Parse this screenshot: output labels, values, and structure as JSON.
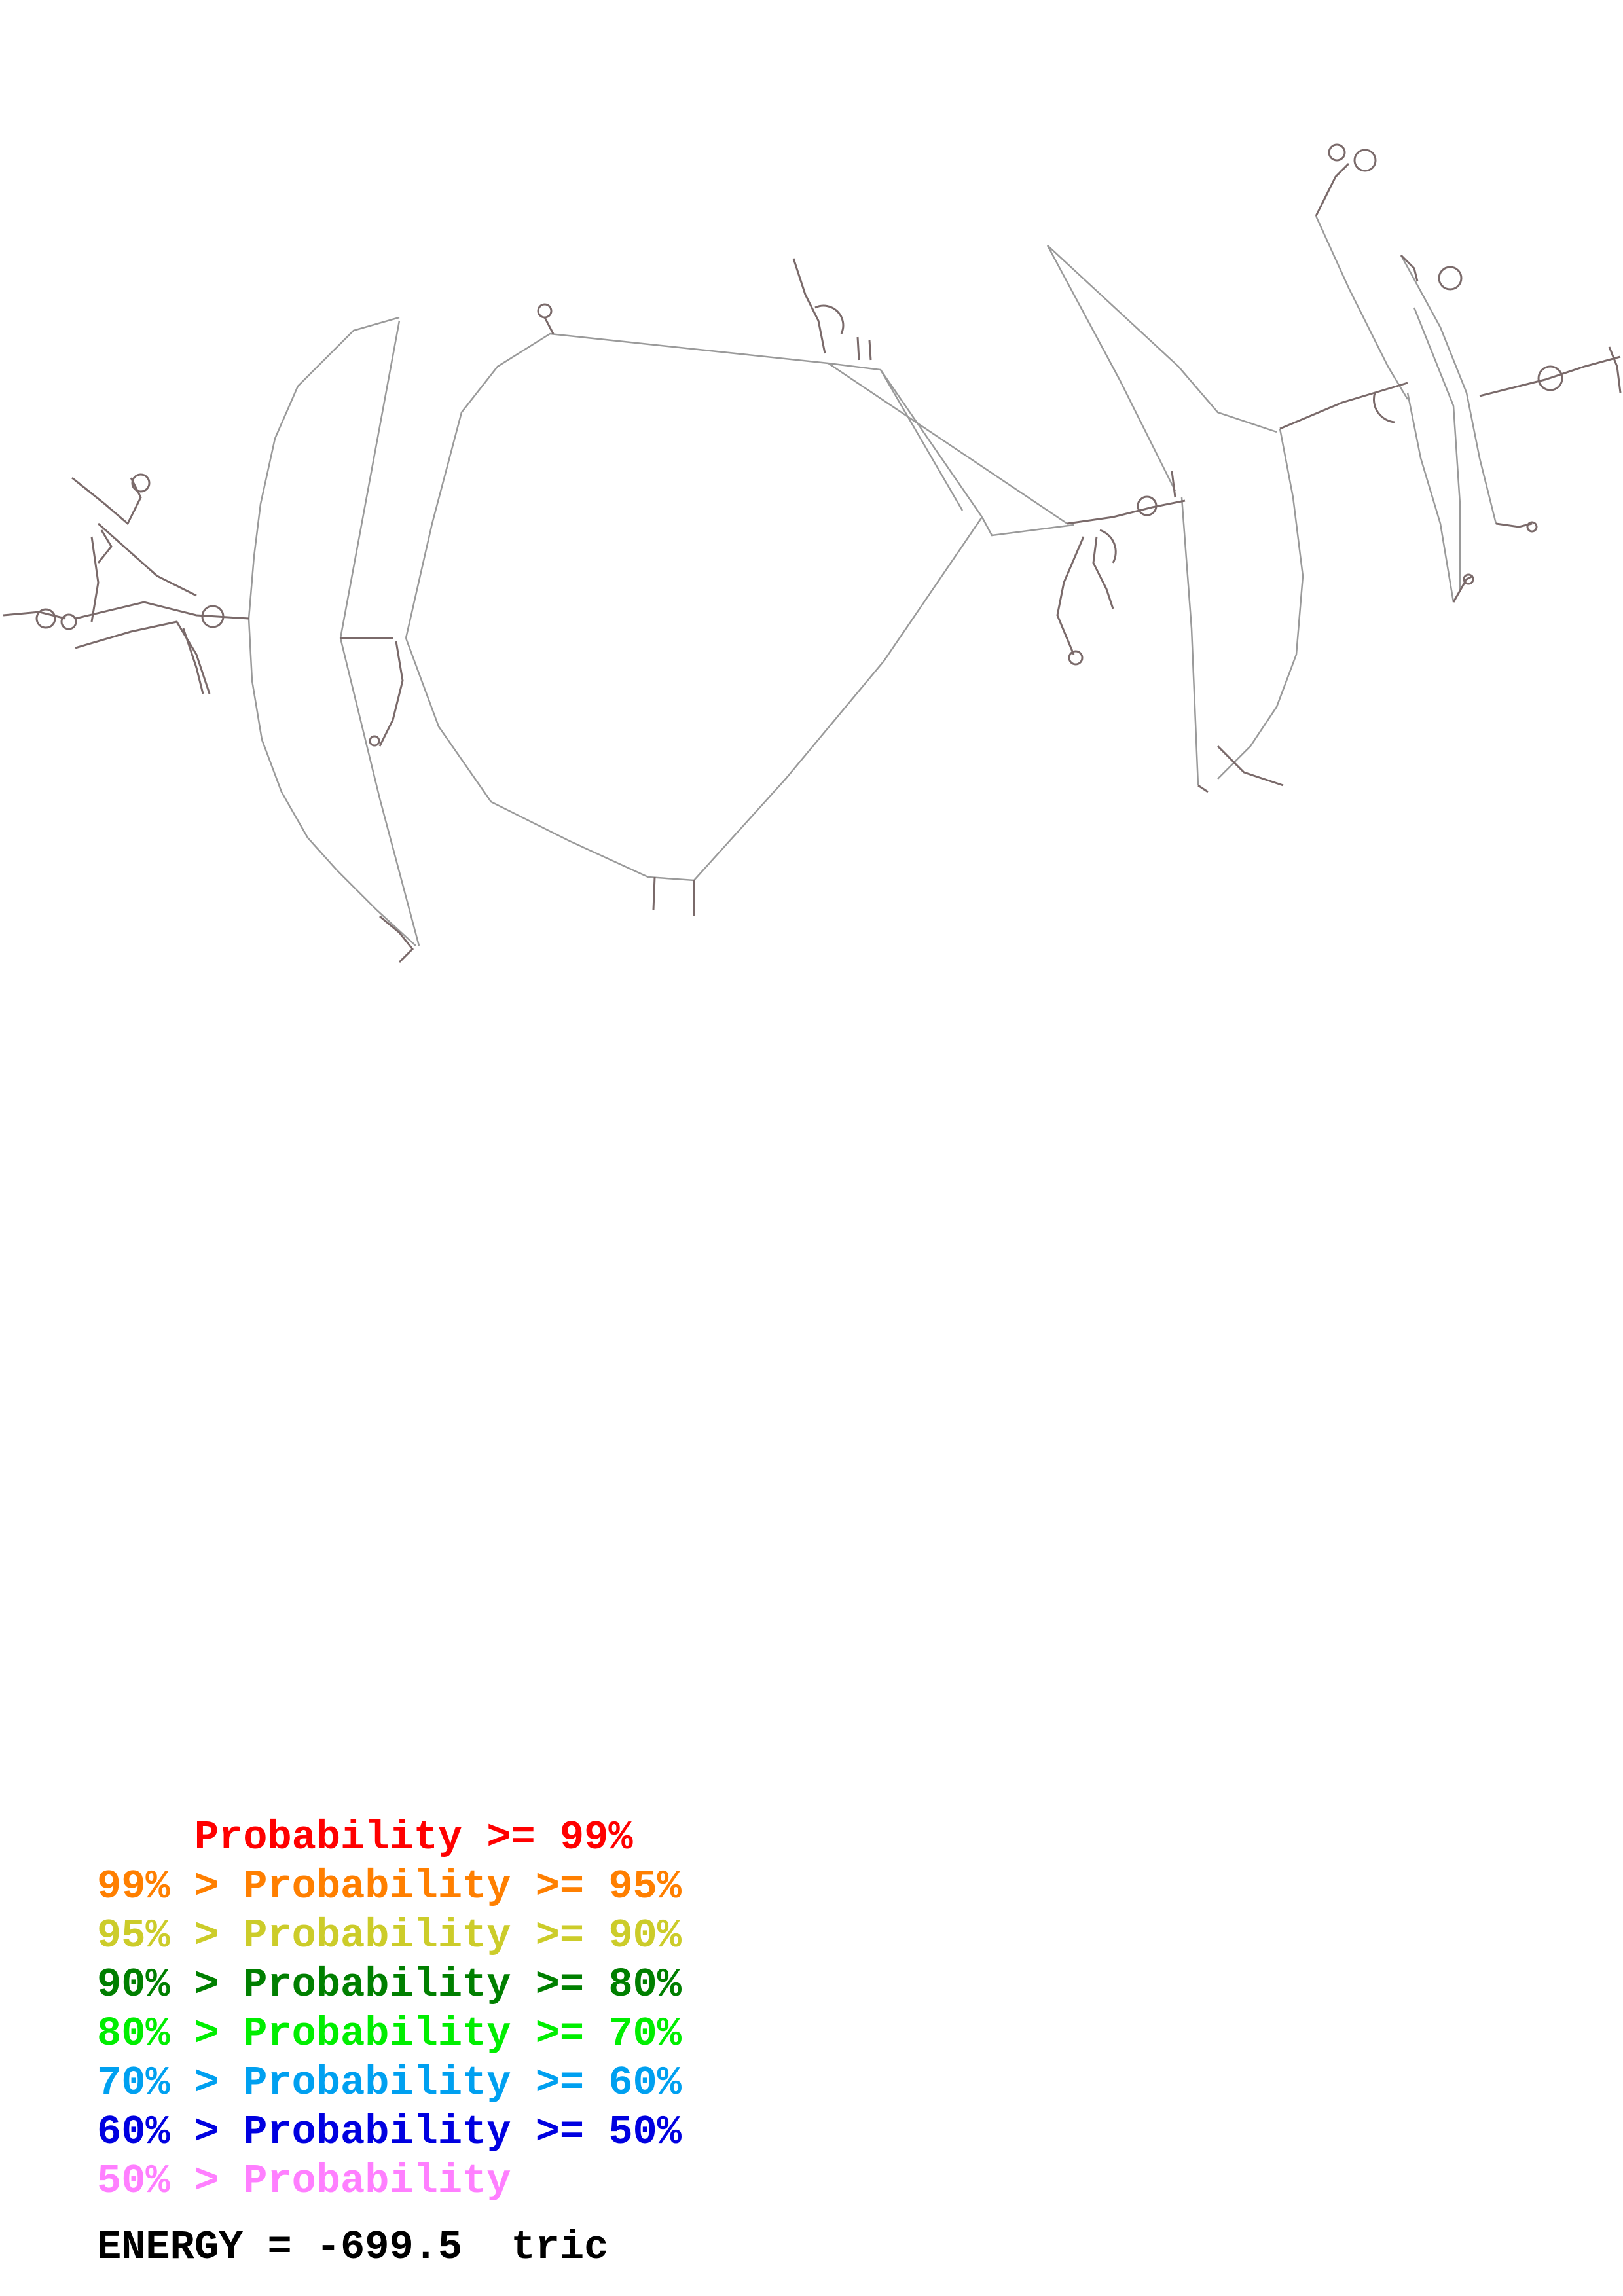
{
  "legend": {
    "rows": [
      {
        "text": "    Probability >= 99%",
        "color": "#ff0000"
      },
      {
        "text": "99% > Probability >= 95%",
        "color": "#ff7f00"
      },
      {
        "text": "95% > Probability >= 90%",
        "color": "#cccc2a"
      },
      {
        "text": "90% > Probability >= 80%",
        "color": "#007f00"
      },
      {
        "text": "80% > Probability >= 70%",
        "color": "#00ee00"
      },
      {
        "text": "70% > Probability >= 60%",
        "color": "#00a0f0"
      },
      {
        "text": "60% > Probability >= 50%",
        "color": "#0000e0"
      },
      {
        "text": "50% > Probability",
        "color": "#ff7fff"
      }
    ]
  },
  "energy": {
    "label": "ENERGY = -699.5",
    "name": "tric"
  },
  "colors": {
    "backbone": "#9a9a9a",
    "pair": "#7a6a6a"
  }
}
